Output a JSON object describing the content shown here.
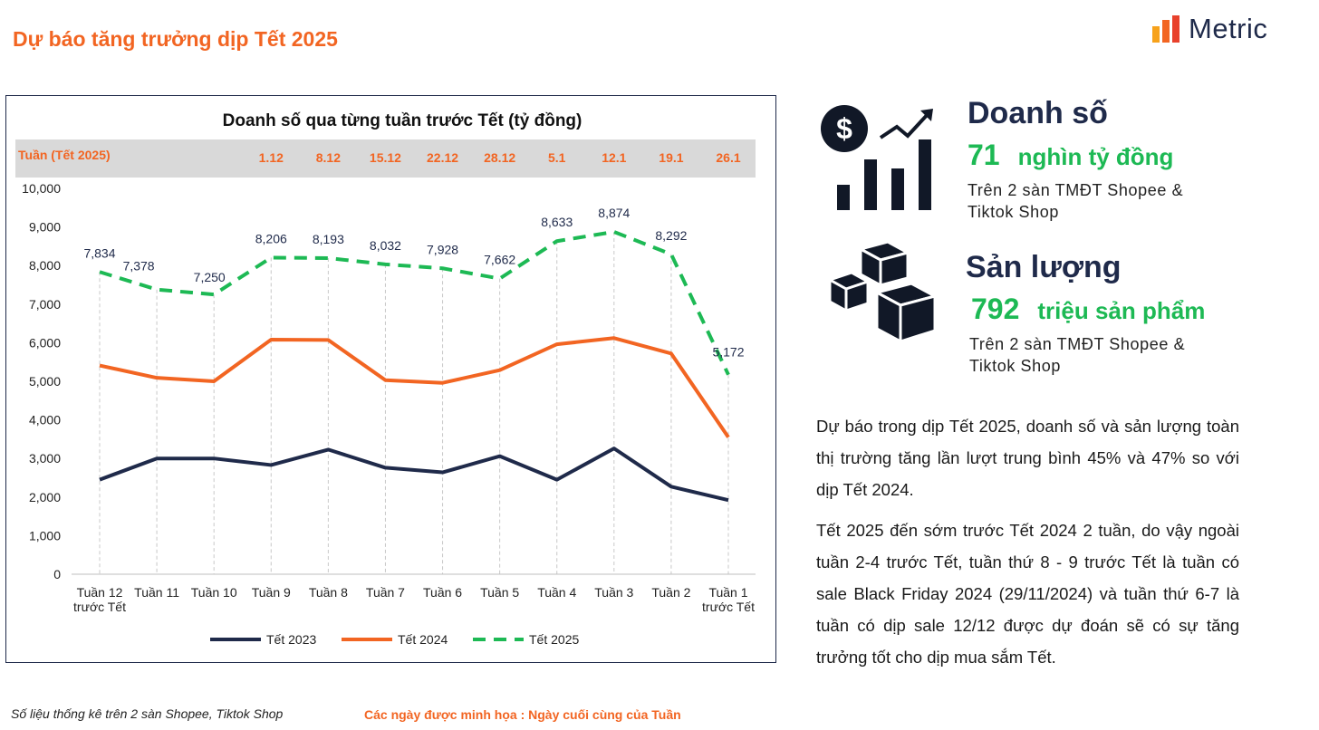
{
  "page_title": "Dự báo tăng trưởng dịp Tết 2025",
  "logo": {
    "text": "Metric",
    "bar_colors": [
      "#f7a21b",
      "#f26522",
      "#e8412c"
    ]
  },
  "colors": {
    "accent": "#f26522",
    "navy": "#1f2a4a",
    "green": "#1db954"
  },
  "chart_data": {
    "type": "line",
    "title": "Doanh số qua từng tuần trước Tết (tỷ đồng)",
    "week_row_label": "Tuần (Tết 2025)",
    "week_dates": [
      "",
      "",
      "",
      "1.12",
      "8.12",
      "15.12",
      "22.12",
      "28.12",
      "5.1",
      "12.1",
      "19.1",
      "26.1"
    ],
    "categories": [
      [
        "Tuần 12",
        "trước Tết"
      ],
      [
        "Tuần 11"
      ],
      [
        "Tuần 10"
      ],
      [
        "Tuần 9"
      ],
      [
        "Tuần 8"
      ],
      [
        "Tuần 7"
      ],
      [
        "Tuần 6"
      ],
      [
        "Tuần 5"
      ],
      [
        "Tuần 4"
      ],
      [
        "Tuần 3"
      ],
      [
        "Tuần 2"
      ],
      [
        "Tuần 1",
        "trước Tết"
      ]
    ],
    "ylim": [
      0,
      10000
    ],
    "yticks": [
      "0",
      "1,000",
      "2,000",
      "3,000",
      "4,000",
      "5,000",
      "6,000",
      "7,000",
      "8,000",
      "9,000",
      "10,000"
    ],
    "grid": "vertical-dashed",
    "legend_position": "bottom",
    "series": [
      {
        "name": "Tết 2023",
        "color": "#1f2a4a",
        "style": "solid",
        "values": [
          2450,
          3000,
          3000,
          2830,
          3230,
          2760,
          2640,
          3060,
          2450,
          3260,
          2270,
          1920
        ]
      },
      {
        "name": "Tết 2024",
        "color": "#f26522",
        "style": "solid",
        "values": [
          5410,
          5090,
          5000,
          6080,
          6070,
          5030,
          4960,
          5290,
          5960,
          6120,
          5720,
          3550
        ]
      },
      {
        "name": "Tết 2025",
        "color": "#1db954",
        "style": "dashed",
        "values": [
          7834,
          7378,
          7250,
          8206,
          8193,
          8032,
          7928,
          7662,
          8633,
          8874,
          8292,
          5172
        ],
        "labels": [
          "7,834",
          "7,378",
          "7,250",
          "8,206",
          "8,193",
          "8,032",
          "7,928",
          "7,662",
          "8,633",
          "8,874",
          "8,292",
          "5,172"
        ]
      }
    ]
  },
  "metrics": [
    {
      "icon": "revenue-chart-icon",
      "title": "Doanh số",
      "value": "71",
      "unit": "nghìn tỷ đồng",
      "desc_lines": [
        "Trên 2 sàn TMĐT Shopee &",
        "Tiktok Shop"
      ]
    },
    {
      "icon": "boxes-icon",
      "title": "Sản lượng",
      "value": "792",
      "unit": "triệu sản phẩm",
      "desc_lines": [
        "Trên 2 sàn TMĐT Shopee &",
        "Tiktok Shop"
      ]
    }
  ],
  "paragraphs": [
    "Dự báo trong dịp Tết 2025, doanh số và sản lượng toàn thị trường tăng lần lượt trung bình 45% và 47% so với dịp Tết 2024.",
    "Tết 2025 đến sớm trước Tết 2024 2 tuần, do vậy ngoài tuần 2-4 trước Tết, tuần thứ 8 - 9 trước Tết là tuần có sale Black Friday 2024 (29/11/2024) và tuần thứ 6-7 là tuần có dịp sale 12/12 được dự đoán sẽ có sự tăng trưởng tốt cho dịp mua sắm Tết."
  ],
  "footer": {
    "source": "Số liệu thống kê trên 2 sàn Shopee, Tiktok Shop",
    "note": "Các ngày được minh họa : Ngày cuối cùng của Tuần"
  }
}
